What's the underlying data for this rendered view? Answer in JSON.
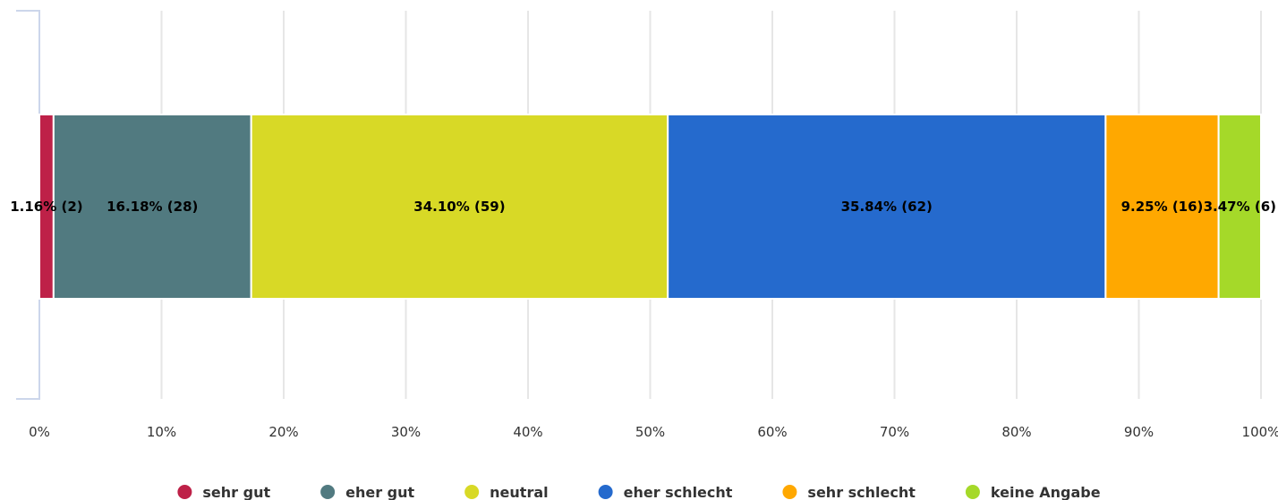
{
  "chart_data": {
    "type": "bar",
    "orientation": "horizontal",
    "stacking": "percent",
    "categories": [
      ""
    ],
    "series": [
      {
        "name": "sehr gut",
        "color": "#BE2148",
        "values": [
          1.16
        ],
        "label": "1.16% (2)"
      },
      {
        "name": "eher gut",
        "color": "#517A80",
        "values": [
          16.18
        ],
        "label": "16.18% (28)"
      },
      {
        "name": "neutral",
        "color": "#D8D926",
        "values": [
          34.1
        ],
        "label": "34.10% (59)"
      },
      {
        "name": "eher schlecht",
        "color": "#256ACD",
        "values": [
          35.84
        ],
        "label": "35.84% (62)"
      },
      {
        "name": "sehr schlecht",
        "color": "#FFA800",
        "values": [
          9.25
        ],
        "label": "9.25% (16)"
      },
      {
        "name": "keine Angabe",
        "color": "#A5D929",
        "values": [
          3.47
        ],
        "label": "3.47% (6)"
      }
    ],
    "xlim": [
      0,
      100
    ],
    "xticks": [
      "0%",
      "10%",
      "20%",
      "30%",
      "40%",
      "50%",
      "60%",
      "70%",
      "80%",
      "90%",
      "100%"
    ],
    "grid": true,
    "legend_position": "bottom",
    "title": "",
    "xlabel": "",
    "ylabel": ""
  }
}
